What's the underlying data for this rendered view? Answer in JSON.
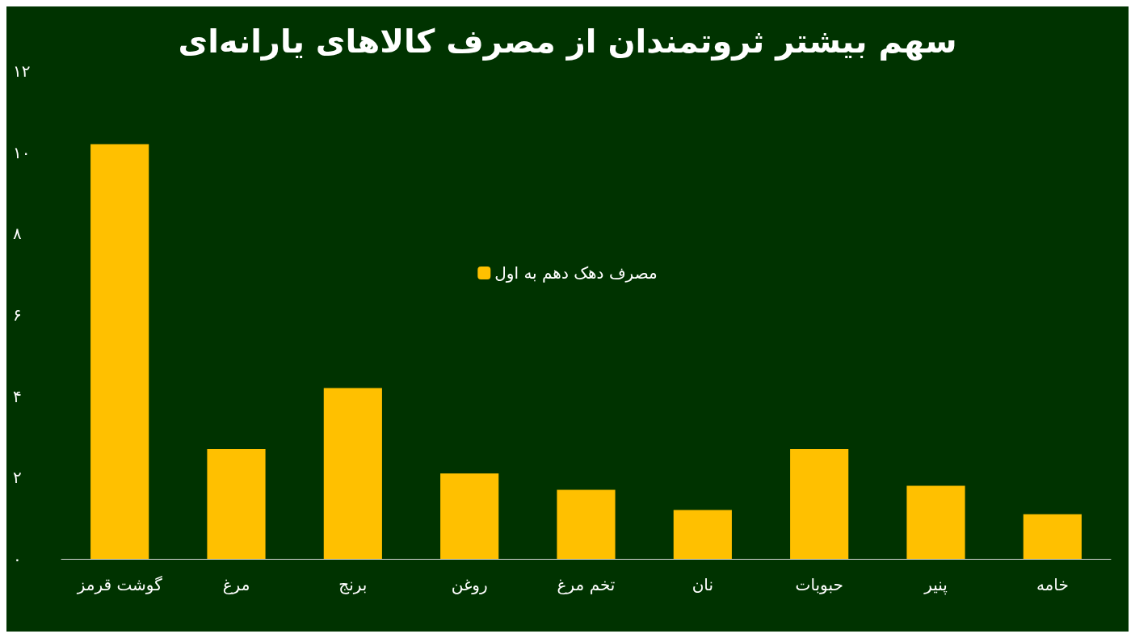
{
  "chart_data": {
    "type": "bar",
    "title": "سهم بیشتر ثروتمندان از مصرف کالاهای یارانه‌ای",
    "categories": [
      "گوشت قرمز",
      "مرغ",
      "برنج",
      "روغن",
      "تخم مرغ",
      "نان",
      "حبوبات",
      "پنیر",
      "خامه"
    ],
    "series": [
      {
        "name": "مصرف دهک دهم به اول",
        "color": "#ffc000",
        "values": [
          10.2,
          2.7,
          4.2,
          2.1,
          1.7,
          1.2,
          2.7,
          1.8,
          1.1
        ]
      }
    ],
    "ylim": [
      0,
      12
    ],
    "yticks": [
      {
        "value": 0,
        "label": "۰"
      },
      {
        "value": 2,
        "label": "۲"
      },
      {
        "value": 4,
        "label": "۴"
      },
      {
        "value": 6,
        "label": "۶"
      },
      {
        "value": 8,
        "label": "۸"
      },
      {
        "value": 10,
        "label": "۱۰"
      },
      {
        "value": 12,
        "label": "۱۲"
      }
    ],
    "grid": false,
    "legend": "top"
  }
}
